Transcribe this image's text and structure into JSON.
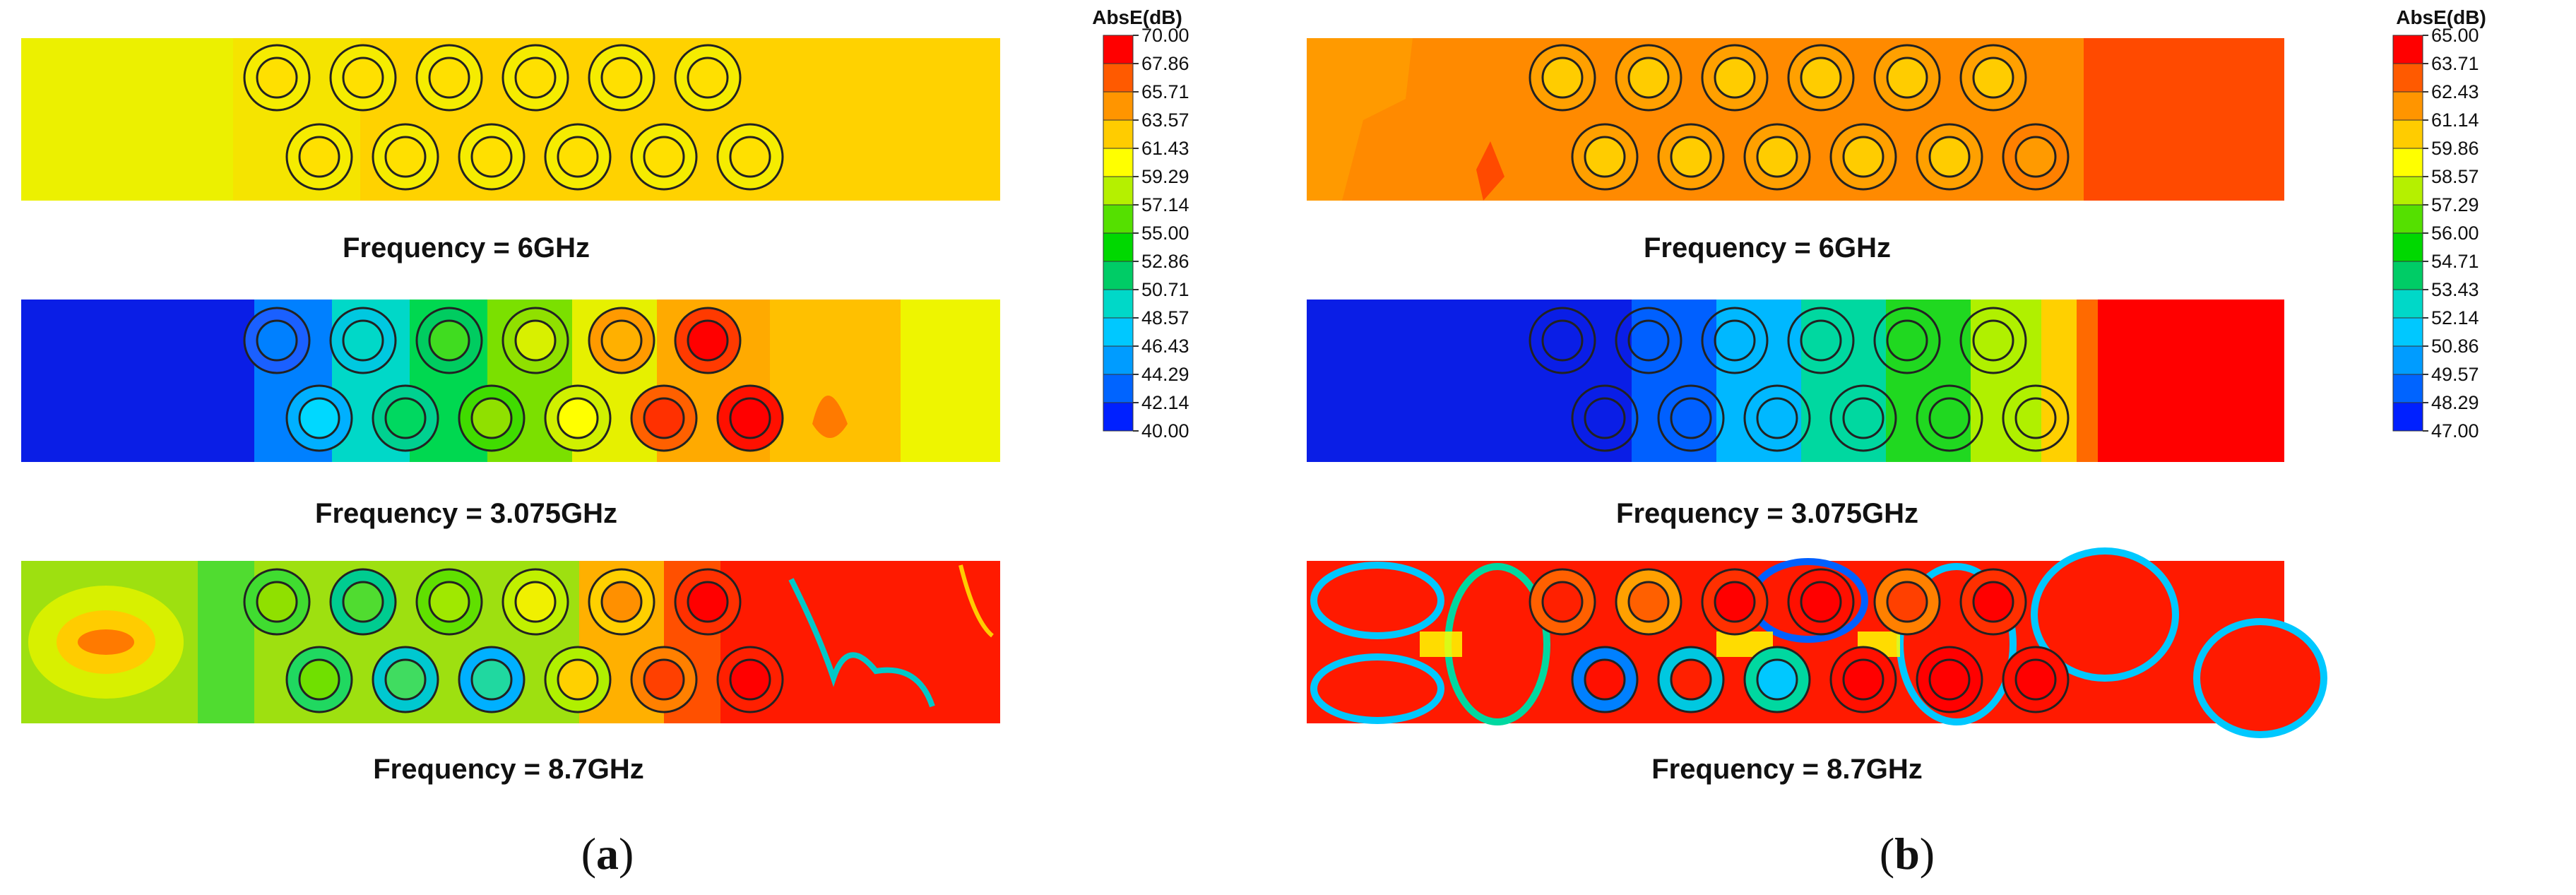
{
  "panels": [
    {
      "id": "a",
      "label": "a",
      "colorbar": {
        "title": "AbsE(dB)",
        "ticks": [
          "70.00",
          "67.86",
          "65.71",
          "63.57",
          "61.43",
          "59.29",
          "57.14",
          "55.00",
          "52.86",
          "50.71",
          "48.57",
          "46.43",
          "44.29",
          "42.14",
          "40.00"
        ],
        "colors": [
          "#ff0000",
          "#ff5a00",
          "#ff9500",
          "#ffcc00",
          "#ffff00",
          "#b5f000",
          "#55e000",
          "#00d800",
          "#00cc66",
          "#00d8c8",
          "#00c8ff",
          "#009cff",
          "#0064ff",
          "#0020ff"
        ]
      },
      "plots": [
        {
          "caption": "Frequency = 6GHz",
          "background": "#ffd200",
          "left_color": "#ecf000"
        },
        {
          "caption": "Frequency = 3.075GHz",
          "background": "#ffc000",
          "left_color": "#0a1ee6"
        },
        {
          "caption": "Frequency = 8.7GHz",
          "background": "#ff1a00",
          "left_color": "#9ee010"
        }
      ]
    },
    {
      "id": "b",
      "label": "b",
      "colorbar": {
        "title": "AbsE(dB)",
        "ticks": [
          "65.00",
          "63.71",
          "62.43",
          "61.14",
          "59.86",
          "58.57",
          "57.29",
          "56.00",
          "54.71",
          "53.43",
          "52.14",
          "50.86",
          "49.57",
          "48.29",
          "47.00"
        ],
        "colors": [
          "#ff0000",
          "#ff5a00",
          "#ff9500",
          "#ffcc00",
          "#ffff00",
          "#b5f000",
          "#55e000",
          "#00d800",
          "#00cc66",
          "#00d8c8",
          "#00c8ff",
          "#009cff",
          "#0064ff",
          "#0020ff"
        ]
      },
      "plots": [
        {
          "caption": "Frequency = 6GHz",
          "background": "#ff8a00",
          "left_color": "#ff8a00"
        },
        {
          "caption": "Frequency = 3.075GHz",
          "background": "#ff0000",
          "left_color": "#0a1ee6"
        },
        {
          "caption": "Frequency = 8.7GHz",
          "background": "#ff1a00",
          "left_color": "#ff1a00"
        }
      ]
    }
  ]
}
